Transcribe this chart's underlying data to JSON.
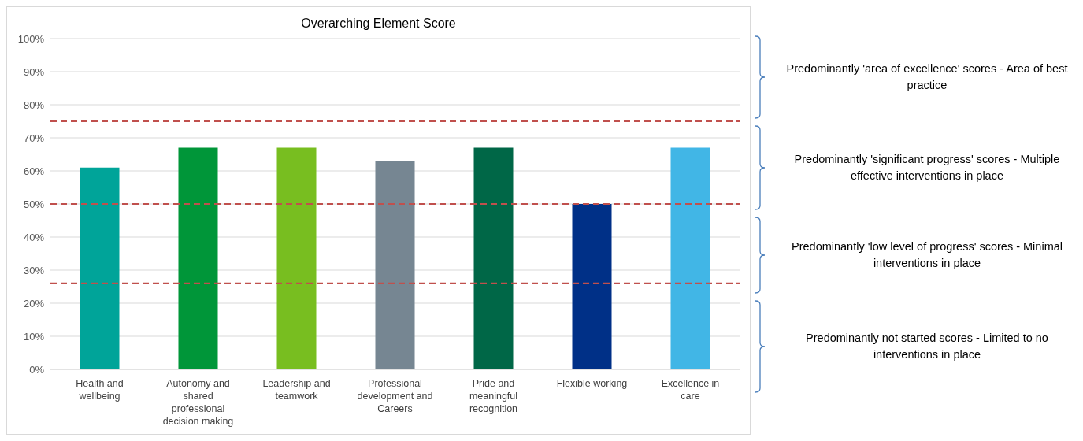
{
  "chart_data": {
    "type": "bar",
    "title": "Overarching Element Score",
    "categories": [
      "Health and wellbeing",
      "Autonomy and shared professional decision making",
      "Leadership and teamwork",
      "Professional development and Careers",
      "Pride and meaningful recognition",
      "Flexible working",
      "Excellence in care"
    ],
    "values": [
      61,
      67,
      67,
      63,
      67,
      50,
      67
    ],
    "colors": [
      "#00a499",
      "#009639",
      "#78be20",
      "#768692",
      "#006747",
      "#003087",
      "#41b6e6"
    ],
    "ylim": [
      0,
      100
    ],
    "yticks": [
      {
        "value": 0,
        "label": "0%"
      },
      {
        "value": 10,
        "label": "10%"
      },
      {
        "value": 20,
        "label": "20%"
      },
      {
        "value": 30,
        "label": "30%"
      },
      {
        "value": 40,
        "label": "40%"
      },
      {
        "value": 50,
        "label": "50%"
      },
      {
        "value": 60,
        "label": "60%"
      },
      {
        "value": 70,
        "label": "70%"
      },
      {
        "value": 80,
        "label": "80%"
      },
      {
        "value": 90,
        "label": "90%"
      },
      {
        "value": 100,
        "label": "100%"
      }
    ],
    "grid": "y",
    "ref_lines": [
      {
        "axis": "y",
        "value": 75,
        "color": "#c0504d",
        "line_style": "dashed"
      },
      {
        "axis": "y",
        "value": 50,
        "color": "#c0504d",
        "line_style": "dashed"
      },
      {
        "axis": "y",
        "value": 26,
        "color": "#c0504d",
        "line_style": "dashed"
      }
    ],
    "annotations": [
      "Predominantly 'area of excellence' scores - Area of best practice",
      "Predominantly 'significant progress' scores - Multiple effective interventions in place",
      "Predominantly 'low level of progress' scores - Minimal interventions in place",
      "Predominantly not started scores - Limited to no interventions in place"
    ]
  }
}
